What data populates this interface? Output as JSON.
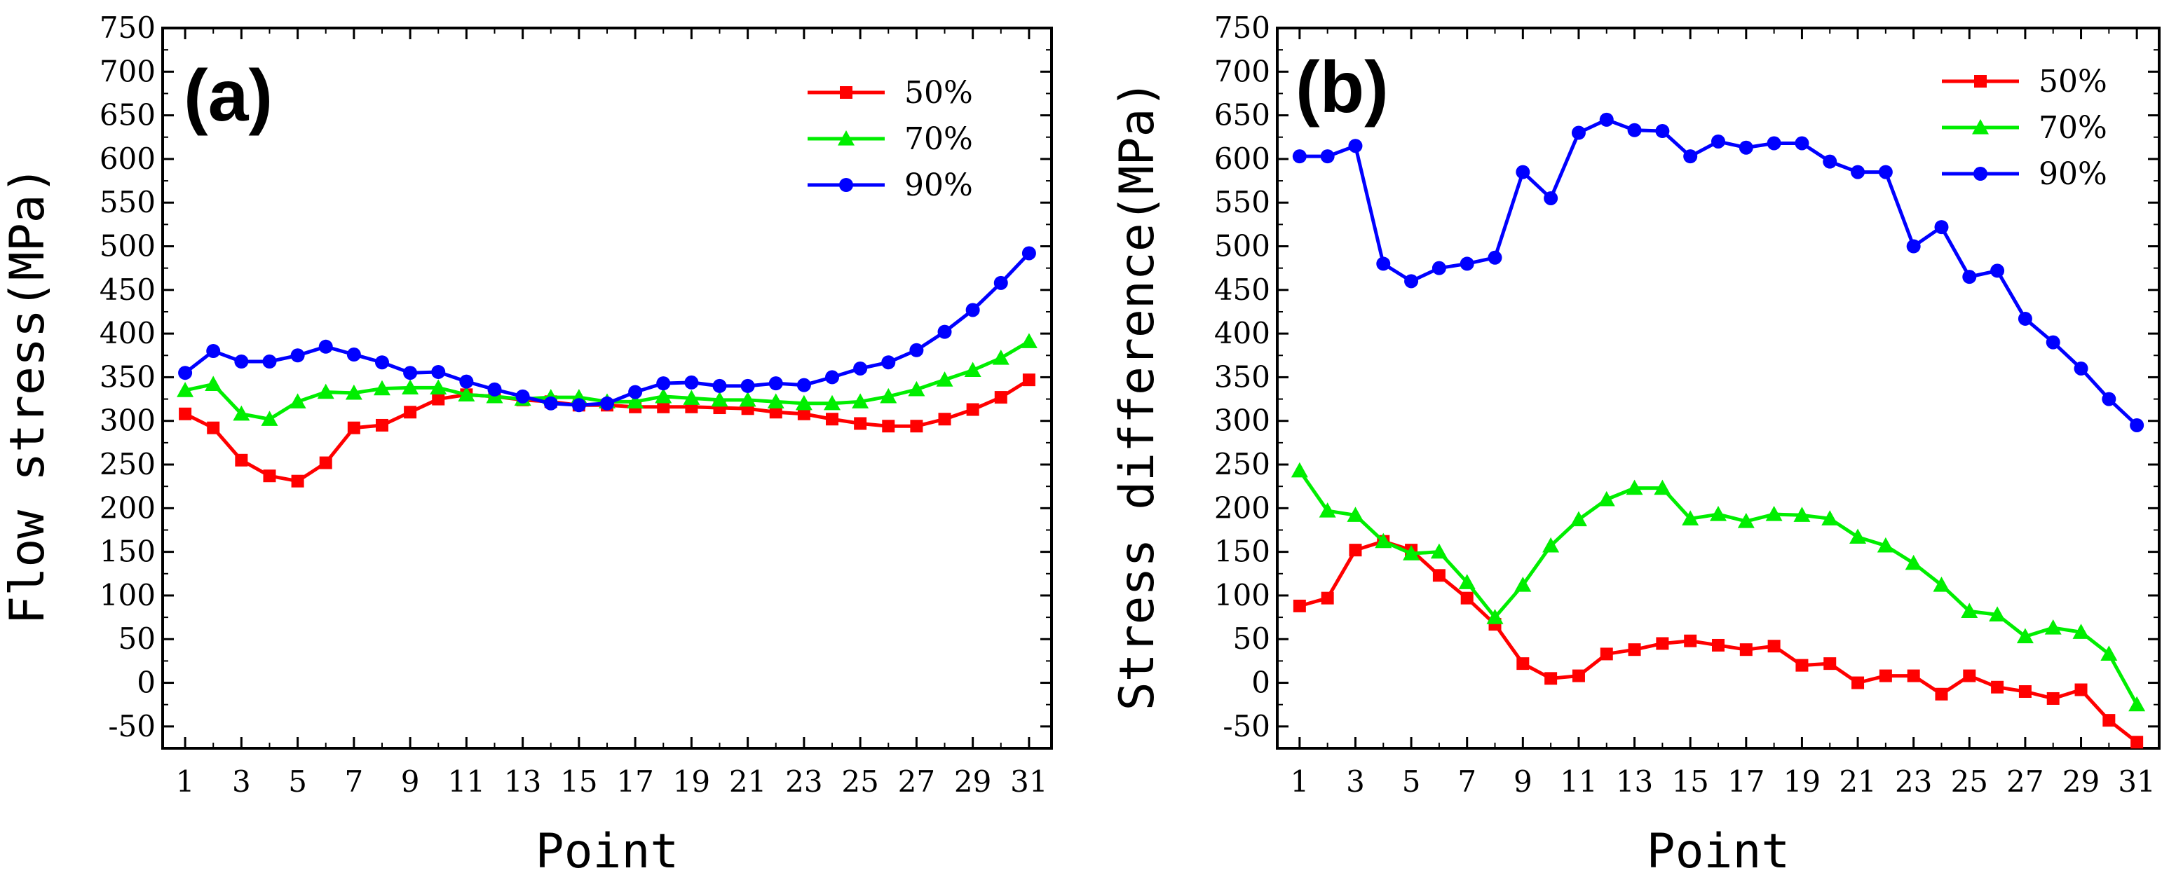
{
  "chart_data": [
    {
      "type": "line",
      "panel_label": "(a)",
      "xlabel": "Point",
      "ylabel": "Flow stress(MPa)",
      "xlim": [
        0.2,
        31.8
      ],
      "ylim": [
        -75,
        750
      ],
      "x_ticks": [
        1,
        3,
        5,
        7,
        9,
        11,
        13,
        15,
        17,
        19,
        21,
        23,
        25,
        27,
        29,
        31
      ],
      "y_ticks": [
        -50,
        0,
        50,
        100,
        150,
        200,
        250,
        300,
        350,
        400,
        450,
        500,
        550,
        600,
        650,
        700,
        750
      ],
      "legend_position": "top-right",
      "x": [
        1,
        2,
        3,
        4,
        5,
        6,
        7,
        8,
        9,
        10,
        11,
        12,
        13,
        14,
        15,
        16,
        17,
        18,
        19,
        20,
        21,
        22,
        23,
        24,
        25,
        26,
        27,
        28,
        29,
        30,
        31
      ],
      "series": [
        {
          "name": "50%",
          "color": "#ff0000",
          "marker": "square",
          "values": [
            308,
            292,
            255,
            237,
            231,
            252,
            292,
            295,
            310,
            325,
            330,
            328,
            324,
            322,
            318,
            318,
            316,
            316,
            316,
            315,
            314,
            310,
            308,
            302,
            297,
            294,
            294,
            302,
            313,
            327,
            347
          ]
        },
        {
          "name": "70%",
          "color": "#00ee00",
          "marker": "triangle",
          "values": [
            335,
            342,
            308,
            302,
            322,
            333,
            332,
            337,
            338,
            338,
            330,
            328,
            325,
            327,
            327,
            322,
            322,
            328,
            326,
            324,
            324,
            322,
            320,
            320,
            322,
            328,
            336,
            347,
            358,
            372,
            391
          ]
        },
        {
          "name": "90%",
          "color": "#0000ff",
          "marker": "circle",
          "values": [
            355,
            380,
            368,
            368,
            375,
            385,
            376,
            367,
            355,
            356,
            345,
            336,
            328,
            320,
            318,
            320,
            333,
            343,
            344,
            340,
            340,
            343,
            341,
            350,
            360,
            367,
            381,
            402,
            427,
            458,
            492
          ]
        }
      ]
    },
    {
      "type": "line",
      "panel_label": "(b)",
      "xlabel": "Point",
      "ylabel": "Stress difference(MPa)",
      "xlim": [
        0.2,
        31.8
      ],
      "ylim": [
        -75,
        750
      ],
      "x_ticks": [
        1,
        3,
        5,
        7,
        9,
        11,
        13,
        15,
        17,
        19,
        21,
        23,
        25,
        27,
        29,
        31
      ],
      "y_ticks": [
        -50,
        0,
        50,
        100,
        150,
        200,
        250,
        300,
        350,
        400,
        450,
        500,
        550,
        600,
        650,
        700,
        750
      ],
      "legend_position": "top-right",
      "x": [
        1,
        2,
        3,
        4,
        5,
        6,
        7,
        8,
        9,
        10,
        11,
        12,
        13,
        14,
        15,
        16,
        17,
        18,
        19,
        20,
        21,
        22,
        23,
        24,
        25,
        26,
        27,
        28,
        29,
        30,
        31
      ],
      "series": [
        {
          "name": "50%",
          "color": "#ff0000",
          "marker": "square",
          "values": [
            88,
            97,
            152,
            162,
            152,
            123,
            97,
            67,
            22,
            5,
            8,
            33,
            38,
            45,
            48,
            43,
            38,
            42,
            20,
            22,
            0,
            8,
            8,
            -13,
            8,
            -5,
            -10,
            -18,
            -8,
            -43,
            -68
          ]
        },
        {
          "name": "70%",
          "color": "#00ee00",
          "marker": "triangle",
          "values": [
            243,
            197,
            192,
            162,
            148,
            150,
            115,
            75,
            112,
            157,
            187,
            210,
            223,
            223,
            188,
            193,
            185,
            193,
            192,
            188,
            167,
            157,
            137,
            112,
            82,
            78,
            53,
            63,
            58,
            33,
            -25
          ]
        },
        {
          "name": "90%",
          "color": "#0000ff",
          "marker": "circle",
          "values": [
            603,
            603,
            615,
            480,
            460,
            475,
            480,
            487,
            585,
            555,
            630,
            645,
            633,
            632,
            603,
            620,
            613,
            618,
            618,
            597,
            585,
            585,
            500,
            522,
            465,
            472,
            417,
            390,
            360,
            325,
            295
          ]
        }
      ]
    }
  ]
}
